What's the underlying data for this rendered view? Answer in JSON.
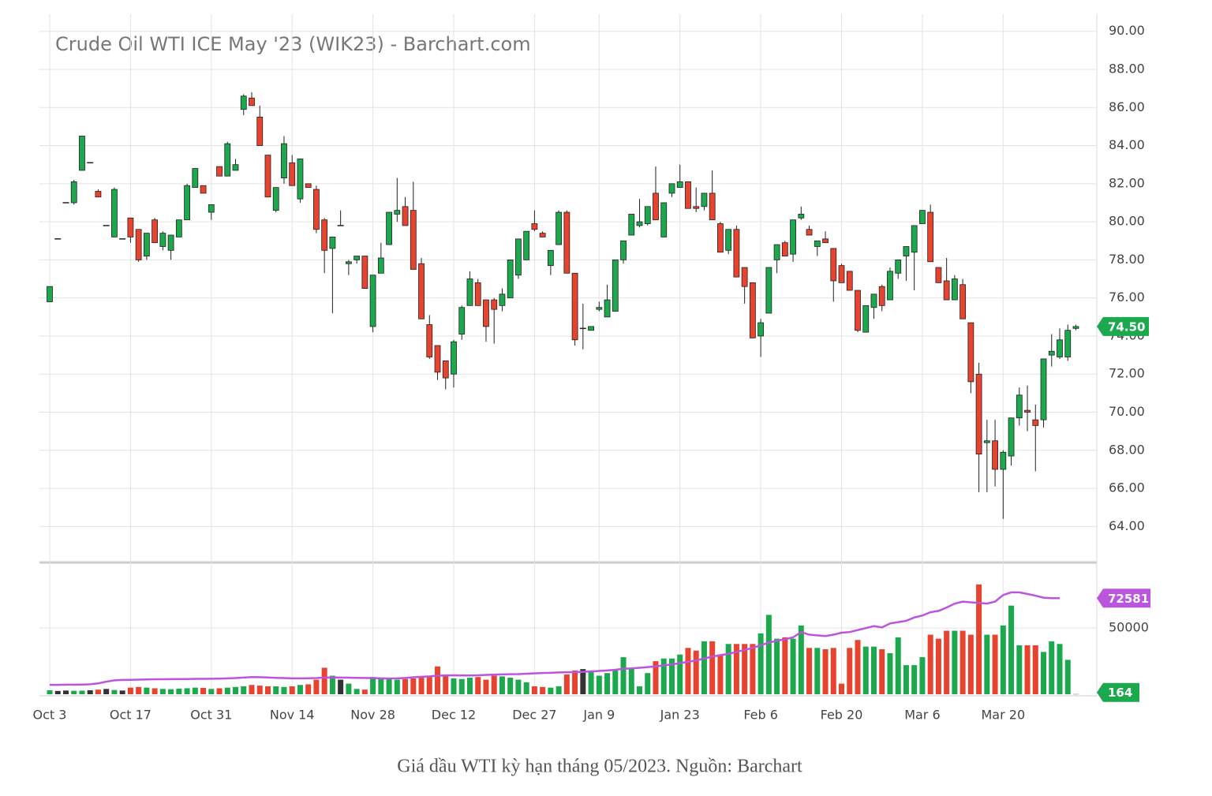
{
  "chart_data": {
    "type": "candlestick",
    "title": "Crude Oil WTI ICE May '23 (WIK23) - Barchart.com",
    "caption": "Giá dầu WTI kỳ hạn tháng 05/2023. Nguồn: Barchart",
    "categories": [
      "Oct 3",
      null,
      null,
      null,
      null,
      null,
      null,
      null,
      null,
      null,
      "Oct 17",
      null,
      null,
      null,
      null,
      null,
      null,
      null,
      null,
      null,
      "Oct 31",
      null,
      null,
      null,
      null,
      null,
      null,
      null,
      null,
      null,
      "Nov 14",
      null,
      null,
      null,
      null,
      null,
      null,
      null,
      null,
      null,
      "Nov 28",
      null,
      null,
      null,
      null,
      null,
      null,
      null,
      null,
      null,
      "Dec 12",
      null,
      null,
      null,
      null,
      null,
      null,
      null,
      null,
      null,
      "Dec 27",
      null,
      null,
      null,
      null,
      null,
      null,
      null,
      "Jan 9",
      null,
      null,
      null,
      null,
      null,
      null,
      null,
      null,
      null,
      "Jan 23",
      null,
      null,
      null,
      null,
      null,
      null,
      null,
      null,
      null,
      "Feb 6",
      null,
      null,
      null,
      null,
      null,
      null,
      null,
      null,
      null,
      "Feb 20",
      null,
      null,
      null,
      null,
      null,
      null,
      null,
      null,
      null,
      "Mar 6",
      null,
      null,
      null,
      null,
      null,
      null,
      null,
      null,
      null,
      "Mar 20",
      null,
      null,
      null,
      null,
      null,
      null,
      null,
      null,
      null
    ],
    "ohlc": [
      [
        75.8,
        76.6,
        75.8,
        76.6
      ],
      [
        79.1,
        79.1,
        79.1,
        79.1
      ],
      [
        81.0,
        81.0,
        81.0,
        81.0
      ],
      [
        81.0,
        82.2,
        80.9,
        82.1
      ],
      [
        82.7,
        84.5,
        82.7,
        84.5
      ],
      [
        83.1,
        83.1,
        83.1,
        83.1
      ],
      [
        81.6,
        81.7,
        81.3,
        81.3
      ],
      [
        79.8,
        79.8,
        79.8,
        79.8
      ],
      [
        79.2,
        81.8,
        79.2,
        81.7
      ],
      [
        79.1,
        79.1,
        79.1,
        79.1
      ],
      [
        80.2,
        80.2,
        78.9,
        79.2
      ],
      [
        79.6,
        79.6,
        77.9,
        78.0
      ],
      [
        78.2,
        79.4,
        78.0,
        79.4
      ],
      [
        80.1,
        80.2,
        78.9,
        78.9
      ],
      [
        78.7,
        79.5,
        78.5,
        79.4
      ],
      [
        78.5,
        79.3,
        78.0,
        79.3
      ],
      [
        79.2,
        80.1,
        79.2,
        80.1
      ],
      [
        80.1,
        82.0,
        80.1,
        81.9
      ],
      [
        81.8,
        82.8,
        81.8,
        82.8
      ],
      [
        81.9,
        81.9,
        81.5,
        81.5
      ],
      [
        80.5,
        80.9,
        80.1,
        80.9
      ],
      [
        82.9,
        82.9,
        82.4,
        82.4
      ],
      [
        82.4,
        84.2,
        82.4,
        84.1
      ],
      [
        82.7,
        83.3,
        82.7,
        83.0
      ],
      [
        85.9,
        86.7,
        85.6,
        86.6
      ],
      [
        86.5,
        86.8,
        86.1,
        86.1
      ],
      [
        85.5,
        86.1,
        84.0,
        84.0
      ],
      [
        83.5,
        83.5,
        81.3,
        81.3
      ],
      [
        80.6,
        81.8,
        80.5,
        81.8
      ],
      [
        82.3,
        84.5,
        82.0,
        84.1
      ],
      [
        83.1,
        83.5,
        81.9,
        81.9
      ],
      [
        81.2,
        83.3,
        81.0,
        83.3
      ],
      [
        82.0,
        82.0,
        81.8,
        81.8
      ],
      [
        81.7,
        81.9,
        79.4,
        79.6
      ],
      [
        80.1,
        80.2,
        77.3,
        78.5
      ],
      [
        78.6,
        79.2,
        75.2,
        79.2
      ],
      [
        79.8,
        80.6,
        79.8,
        79.8
      ],
      [
        77.8,
        78.0,
        77.2,
        77.9
      ],
      [
        78.0,
        78.2,
        77.8,
        78.2
      ],
      [
        78.2,
        78.2,
        76.5,
        76.5
      ],
      [
        74.5,
        77.2,
        74.2,
        77.2
      ],
      [
        77.3,
        78.9,
        77.3,
        78.1
      ],
      [
        78.8,
        80.5,
        78.8,
        80.5
      ],
      [
        80.4,
        82.3,
        80.0,
        80.6
      ],
      [
        80.8,
        81.3,
        79.8,
        79.8
      ],
      [
        80.6,
        82.1,
        77.5,
        77.5
      ],
      [
        77.8,
        78.1,
        74.9,
        74.9
      ],
      [
        74.6,
        75.1,
        72.8,
        72.9
      ],
      [
        73.5,
        73.5,
        71.7,
        72.1
      ],
      [
        72.7,
        72.7,
        71.2,
        71.8
      ],
      [
        72.0,
        73.8,
        71.3,
        73.7
      ],
      [
        74.1,
        75.6,
        73.8,
        75.5
      ],
      [
        75.6,
        77.4,
        75.6,
        77.0
      ],
      [
        76.8,
        77.0,
        75.6,
        75.6
      ],
      [
        75.9,
        75.9,
        73.7,
        74.5
      ],
      [
        75.9,
        76.0,
        73.6,
        75.4
      ],
      [
        75.6,
        76.5,
        75.3,
        76.2
      ],
      [
        76.0,
        78.0,
        76.0,
        78.0
      ],
      [
        77.2,
        79.1,
        77.0,
        79.1
      ],
      [
        78.0,
        79.5,
        78.0,
        79.5
      ],
      [
        79.9,
        80.6,
        79.5,
        79.6
      ],
      [
        79.4,
        79.5,
        79.2,
        79.2
      ],
      [
        77.7,
        78.5,
        77.2,
        78.5
      ],
      [
        78.8,
        80.6,
        78.8,
        80.5
      ],
      [
        80.5,
        80.6,
        77.3,
        77.3
      ],
      [
        77.3,
        77.3,
        73.5,
        73.8
      ],
      [
        74.4,
        75.7,
        73.3,
        74.4
      ],
      [
        74.3,
        74.5,
        74.3,
        74.5
      ],
      [
        75.4,
        75.8,
        75.3,
        75.5
      ],
      [
        75.0,
        76.7,
        75.0,
        75.9
      ],
      [
        75.3,
        78.0,
        75.3,
        78.0
      ],
      [
        78.0,
        79.0,
        77.8,
        79.0
      ],
      [
        79.3,
        80.4,
        79.3,
        80.4
      ],
      [
        79.8,
        81.2,
        79.7,
        80.0
      ],
      [
        79.9,
        80.8,
        79.8,
        80.8
      ],
      [
        81.5,
        82.9,
        80.1,
        80.1
      ],
      [
        79.2,
        81.0,
        79.2,
        81.0
      ],
      [
        81.5,
        82.0,
        81.3,
        82.0
      ],
      [
        81.8,
        83.0,
        81.8,
        82.1
      ],
      [
        82.1,
        82.1,
        80.7,
        80.7
      ],
      [
        80.8,
        81.8,
        80.5,
        80.7
      ],
      [
        80.8,
        81.5,
        80.6,
        81.5
      ],
      [
        81.5,
        82.7,
        80.1,
        80.1
      ],
      [
        79.9,
        80.0,
        78.4,
        78.4
      ],
      [
        78.5,
        79.6,
        78.3,
        79.6
      ],
      [
        79.6,
        79.8,
        77.1,
        77.1
      ],
      [
        77.6,
        77.6,
        75.7,
        76.6
      ],
      [
        76.8,
        76.8,
        73.9,
        73.9
      ],
      [
        74.0,
        74.9,
        72.9,
        74.7
      ],
      [
        75.2,
        77.6,
        75.2,
        77.6
      ],
      [
        78.0,
        78.8,
        77.3,
        78.8
      ],
      [
        78.9,
        79.0,
        78.2,
        78.2
      ],
      [
        78.3,
        80.1,
        77.9,
        80.1
      ],
      [
        80.2,
        80.8,
        80.1,
        80.4
      ],
      [
        79.6,
        79.8,
        79.3,
        79.3
      ],
      [
        78.7,
        79.0,
        78.2,
        79.0
      ],
      [
        79.1,
        79.5,
        78.9,
        78.9
      ],
      [
        78.6,
        78.6,
        75.8,
        76.9
      ],
      [
        77.7,
        77.8,
        76.8,
        76.8
      ],
      [
        77.4,
        77.4,
        76.4,
        76.4
      ],
      [
        76.4,
        76.4,
        74.2,
        74.3
      ],
      [
        74.2,
        75.6,
        74.2,
        75.6
      ],
      [
        75.5,
        76.2,
        74.9,
        76.2
      ],
      [
        76.6,
        76.7,
        75.3,
        75.6
      ],
      [
        75.9,
        77.6,
        75.9,
        77.4
      ],
      [
        77.3,
        78.0,
        77.0,
        78.0
      ],
      [
        78.2,
        78.7,
        76.9,
        78.7
      ],
      [
        78.4,
        79.8,
        76.4,
        79.8
      ],
      [
        79.9,
        80.6,
        79.9,
        80.6
      ],
      [
        80.5,
        80.9,
        77.9,
        77.9
      ],
      [
        77.6,
        77.6,
        76.8,
        76.8
      ],
      [
        76.9,
        78.1,
        75.9,
        75.9
      ],
      [
        75.9,
        77.2,
        75.9,
        77.0
      ],
      [
        76.7,
        77.0,
        74.9,
        74.9
      ],
      [
        74.7,
        74.7,
        71.0,
        71.6
      ],
      [
        72.0,
        72.6,
        65.8,
        67.8
      ],
      [
        68.4,
        69.6,
        65.8,
        68.5
      ],
      [
        68.5,
        69.6,
        66.1,
        67.0
      ],
      [
        67.0,
        68.0,
        64.4,
        67.9
      ],
      [
        67.7,
        69.7,
        67.2,
        69.7
      ],
      [
        69.7,
        71.3,
        69.3,
        70.9
      ],
      [
        70.1,
        71.4,
        69.0,
        70.0
      ],
      [
        69.6,
        70.4,
        66.9,
        69.3
      ],
      [
        69.6,
        72.8,
        69.2,
        72.8
      ],
      [
        73.0,
        74.1,
        72.4,
        73.2
      ],
      [
        72.9,
        74.4,
        72.8,
        73.8
      ],
      [
        72.9,
        74.6,
        72.7,
        74.3
      ],
      [
        74.4,
        74.6,
        74.3,
        74.5
      ]
    ],
    "volume": [
      3000,
      2500,
      2800,
      2600,
      2700,
      3000,
      3500,
      4000,
      3200,
      2800,
      5000,
      5500,
      5000,
      4500,
      4000,
      3800,
      4200,
      4500,
      5000,
      4800,
      4000,
      4500,
      5000,
      5500,
      6000,
      7000,
      6500,
      6000,
      6000,
      5500,
      6000,
      7000,
      7500,
      11000,
      20000,
      14000,
      11000,
      8000,
      4000,
      3500,
      13000,
      12500,
      12000,
      11000,
      11500,
      12000,
      12500,
      13000,
      21000,
      13500,
      12000,
      11500,
      12500,
      13000,
      11000,
      14000,
      13500,
      12500,
      11000,
      9000,
      6000,
      5500,
      5000,
      6000,
      15000,
      18000,
      19000,
      18000,
      14000,
      16000,
      19000,
      28000,
      20000,
      6000,
      16000,
      25000,
      27000,
      27000,
      30000,
      35000,
      33000,
      40000,
      40000,
      30000,
      38000,
      38000,
      38000,
      38000,
      46000,
      60000,
      42000,
      43000,
      42000,
      52000,
      35000,
      35000,
      34000,
      35000,
      8000,
      35000,
      41000,
      36000,
      36000,
      34000,
      31000,
      43000,
      22000,
      22000,
      28000,
      45000,
      42000,
      48000,
      48000,
      48000,
      45000,
      83000,
      45000,
      45000,
      52000,
      67000,
      37000,
      37000,
      37000,
      32000,
      40000,
      38000,
      26000,
      164
    ],
    "volume_ma": [
      7100,
      7100,
      7200,
      7200,
      7300,
      7500,
      8200,
      9500,
      10500,
      10800,
      10900,
      11000,
      11200,
      11300,
      11300,
      11400,
      11500,
      11500,
      11600,
      11600,
      11700,
      11800,
      12000,
      12200,
      12600,
      13000,
      12900,
      12700,
      12400,
      12200,
      12000,
      12000,
      12100,
      12200,
      12600,
      12700,
      12600,
      12500,
      12400,
      12300,
      12200,
      12000,
      11900,
      12000,
      12300,
      12800,
      13200,
      13500,
      14000,
      14200,
      14300,
      14200,
      14200,
      14300,
      14600,
      14800,
      15000,
      15100,
      15200,
      15500,
      15800,
      16000,
      16200,
      16500,
      16600,
      16700,
      16900,
      17200,
      17600,
      18000,
      18500,
      19200,
      19500,
      20000,
      20500,
      21000,
      21800,
      22600,
      23500,
      24500,
      25500,
      27000,
      28500,
      29500,
      30500,
      32000,
      33500,
      35000,
      37000,
      39000,
      40500,
      41500,
      43000,
      47000,
      45000,
      44500,
      44000,
      45000,
      46500,
      47000,
      48500,
      50000,
      51500,
      50500,
      53500,
      54500,
      55500,
      58000,
      59500,
      62000,
      63000,
      65500,
      68500,
      70000,
      69500,
      69000,
      68500,
      70000,
      75000,
      77000,
      77000,
      75800,
      74500,
      73000,
      72600,
      72581,
      null,
      null
    ],
    "last_price_label": "74.50",
    "ma_label": "72581",
    "volume_label": "164",
    "colors": {
      "up": "#1ca84c",
      "down": "#e8432f",
      "ma": "#bb55dd"
    },
    "ylim": [
      62.15,
      90.9
    ],
    "yticks": [
      {
        "value": 64,
        "label": "64.00"
      },
      {
        "value": 66,
        "label": "66.00"
      },
      {
        "value": 68,
        "label": "68.00"
      },
      {
        "value": 70,
        "label": "70.00"
      },
      {
        "value": 72,
        "label": "72.00"
      },
      {
        "value": 74,
        "label": "74.00"
      },
      {
        "value": 76,
        "label": "76.00"
      },
      {
        "value": 78,
        "label": "78.00"
      },
      {
        "value": 80,
        "label": "80.00"
      },
      {
        "value": 82,
        "label": "82.00"
      },
      {
        "value": 84,
        "label": "84.00"
      },
      {
        "value": 86,
        "label": "86.00"
      },
      {
        "value": 88,
        "label": "88.00"
      },
      {
        "value": 90,
        "label": "90.00"
      }
    ],
    "vlim": [
      0,
      99000
    ],
    "vticks": [
      50000
    ],
    "grid": true
  }
}
